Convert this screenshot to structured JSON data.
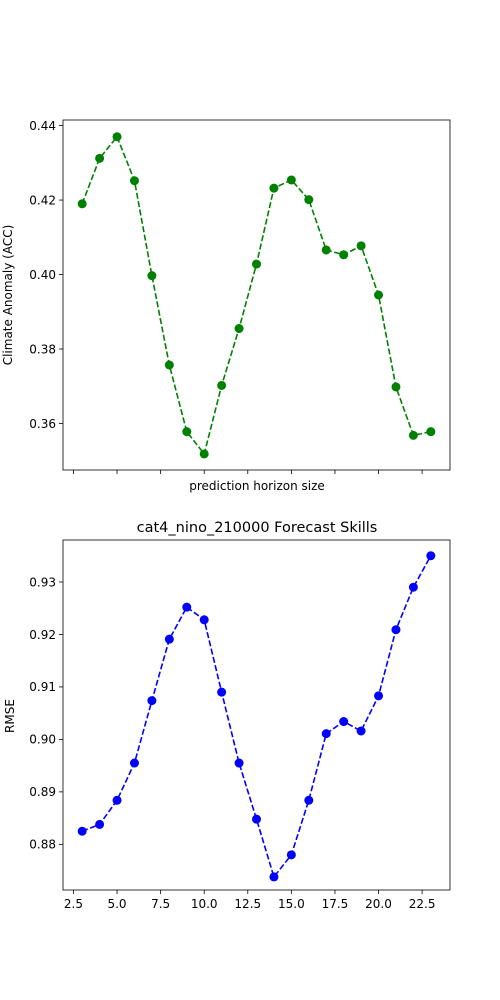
{
  "chart_data": [
    {
      "type": "line",
      "title": "",
      "xlabel": "prediction horizon size",
      "ylabel": "Climate Anomaly (ACC)",
      "xlim": [
        1.9,
        24.1
      ],
      "ylim": [
        0.3475,
        0.4415
      ],
      "xticks": [
        2.5,
        5.0,
        7.5,
        10.0,
        12.5,
        15.0,
        17.5,
        20.0,
        22.5
      ],
      "xtick_labels_shown": false,
      "yticks": [
        0.36,
        0.38,
        0.4,
        0.42,
        0.44
      ],
      "ytick_labels": [
        "0.36",
        "0.38",
        "0.40",
        "0.42",
        "0.44"
      ],
      "grid": false,
      "color": "#008000",
      "line_style": "dashed",
      "marker": "circle",
      "x": [
        3,
        4,
        5,
        6,
        7,
        8,
        9,
        10,
        11,
        12,
        13,
        14,
        15,
        16,
        17,
        18,
        19,
        20,
        21,
        22,
        23
      ],
      "y": [
        0.419,
        0.4312,
        0.437,
        0.4252,
        0.3997,
        0.3757,
        0.3578,
        0.3518,
        0.3702,
        0.3855,
        0.4028,
        0.4232,
        0.4254,
        0.4201,
        0.4066,
        0.4053,
        0.4077,
        0.3945,
        0.3698,
        0.3568,
        0.3578
      ]
    },
    {
      "type": "line",
      "title": "cat4_nino_210000 Forecast Skills",
      "xlabel": "",
      "ylabel": "RMSE",
      "xlim": [
        1.9,
        24.1
      ],
      "ylim": [
        0.8713,
        0.938
      ],
      "xticks": [
        2.5,
        5.0,
        7.5,
        10.0,
        12.5,
        15.0,
        17.5,
        20.0,
        22.5
      ],
      "xtick_labels": [
        "2.5",
        "5.0",
        "7.5",
        "10.0",
        "12.5",
        "15.0",
        "17.5",
        "20.0",
        "22.5"
      ],
      "yticks": [
        0.88,
        0.89,
        0.9,
        0.91,
        0.92,
        0.93
      ],
      "ytick_labels": [
        "0.88",
        "0.89",
        "0.90",
        "0.91",
        "0.92",
        "0.93"
      ],
      "grid": false,
      "color": "#0000ff",
      "line_style": "dashed",
      "marker": "circle",
      "x": [
        3,
        4,
        5,
        6,
        7,
        8,
        9,
        10,
        11,
        12,
        13,
        14,
        15,
        16,
        17,
        18,
        19,
        20,
        21,
        22,
        23
      ],
      "y": [
        0.8825,
        0.8838,
        0.8884,
        0.8955,
        0.9074,
        0.9191,
        0.9252,
        0.9228,
        0.909,
        0.8955,
        0.8848,
        0.8738,
        0.878,
        0.8884,
        0.9011,
        0.9034,
        0.9016,
        0.9083,
        0.9209,
        0.929,
        0.935
      ]
    }
  ]
}
